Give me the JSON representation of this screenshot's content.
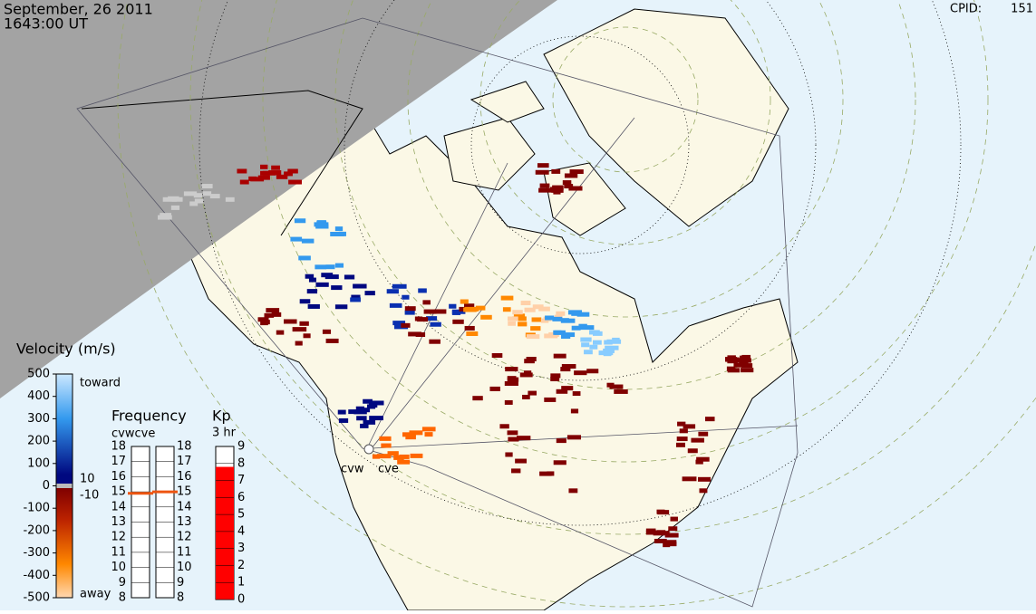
{
  "header": {
    "date": "September, 26 2011",
    "time": "1643:00 UT",
    "cpid_label": "CPID:",
    "cpid": "151"
  },
  "velocity_scale": {
    "title": "Velocity (m/s)",
    "ticks": [
      500,
      400,
      300,
      200,
      100,
      0,
      -100,
      -200,
      -300,
      -400,
      -500
    ],
    "toward": "toward",
    "away": "away",
    "upper_label": "10",
    "lower_label": "-10"
  },
  "frequency": {
    "title": "Frequency",
    "radars": "cvwcve",
    "ticks": [
      8,
      9,
      10,
      11,
      12,
      13,
      14,
      15,
      16,
      17,
      18
    ],
    "values": [
      14.9,
      15.0
    ]
  },
  "kp": {
    "title": "Kp",
    "subtitle": "3 hr",
    "ticks": [
      0,
      1,
      2,
      3,
      4,
      5,
      6,
      7,
      8,
      9
    ],
    "value": 7.8
  },
  "radars": [
    "cvw",
    "cve"
  ]
}
